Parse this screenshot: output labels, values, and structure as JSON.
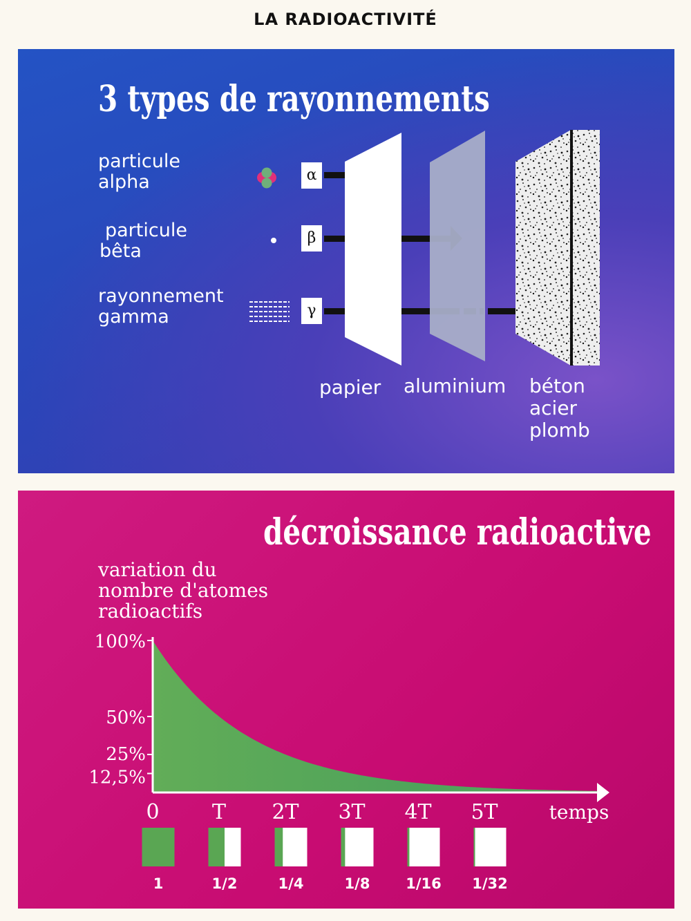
{
  "page": {
    "title": "LA RADIOACTIVITÉ"
  },
  "radiation_panel": {
    "title": "3 types de rayonnements",
    "rays": [
      {
        "label_line1": "particule",
        "label_line2": "alpha",
        "symbol": "α",
        "stopped_by": "papier"
      },
      {
        "label_line1": "particule",
        "label_line2": "bêta",
        "symbol": "β",
        "stopped_by": "aluminium"
      },
      {
        "label_line1": "rayonnement",
        "label_line2": "gamma",
        "symbol": "γ",
        "stopped_by": "béton / acier / plomb"
      }
    ],
    "materials": {
      "paper": "papier",
      "aluminium": "aluminium",
      "thick_line1": "béton",
      "thick_line2": "acier",
      "thick_line3": "plomb"
    },
    "colors": {
      "background": "#2b4bbd",
      "paper": "#ffffff",
      "aluminium": "#a7aec8",
      "concrete": "#e8e8e8"
    }
  },
  "decay_panel": {
    "title": "décroissance radioactive",
    "y_title_line1": "variation du",
    "y_title_line2": "nombre d'atomes",
    "y_title_line3": "radioactifs",
    "colors": {
      "background": "#c80c72",
      "curve_fill": "#5aa653",
      "box": "#ffffff"
    }
  },
  "chart_data": {
    "type": "area",
    "x_tick_labels": [
      "0",
      "T",
      "2T",
      "3T",
      "4T",
      "5T"
    ],
    "x_axis_label": "temps",
    "y_tick_labels": [
      "100%",
      "50%",
      "25%",
      "12,5%"
    ],
    "x": [
      0,
      1,
      2,
      3,
      4,
      5
    ],
    "y": [
      100,
      50,
      25,
      12.5,
      6.25,
      3.125
    ],
    "fractions": [
      {
        "label": "1",
        "value": 1
      },
      {
        "label": "1/2",
        "value": 0.5
      },
      {
        "label": "1/4",
        "value": 0.25
      },
      {
        "label": "1/8",
        "value": 0.125
      },
      {
        "label": "1/16",
        "value": 0.0625
      },
      {
        "label": "1/32",
        "value": 0.03125
      }
    ]
  }
}
